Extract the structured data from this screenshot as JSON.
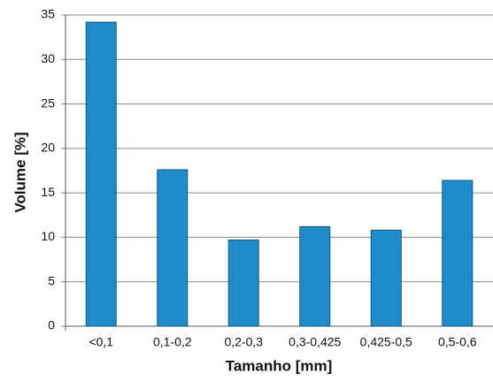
{
  "chart_data": {
    "type": "bar",
    "x_label": "Tamanho [mm]",
    "y_label": "Volume [%]",
    "categories": [
      "<0,1",
      "0,1-0,2",
      "0,2-0,3",
      "0,3-0,425",
      "0,425-0,5",
      "0,5-0,6"
    ],
    "values": [
      34.2,
      17.6,
      9.7,
      11.2,
      10.8,
      16.4
    ],
    "color": "#1e8ccb",
    "ylim": [
      0,
      35
    ],
    "yticks": [
      0,
      5,
      10,
      15,
      20,
      25,
      30,
      35
    ],
    "grid": true
  }
}
